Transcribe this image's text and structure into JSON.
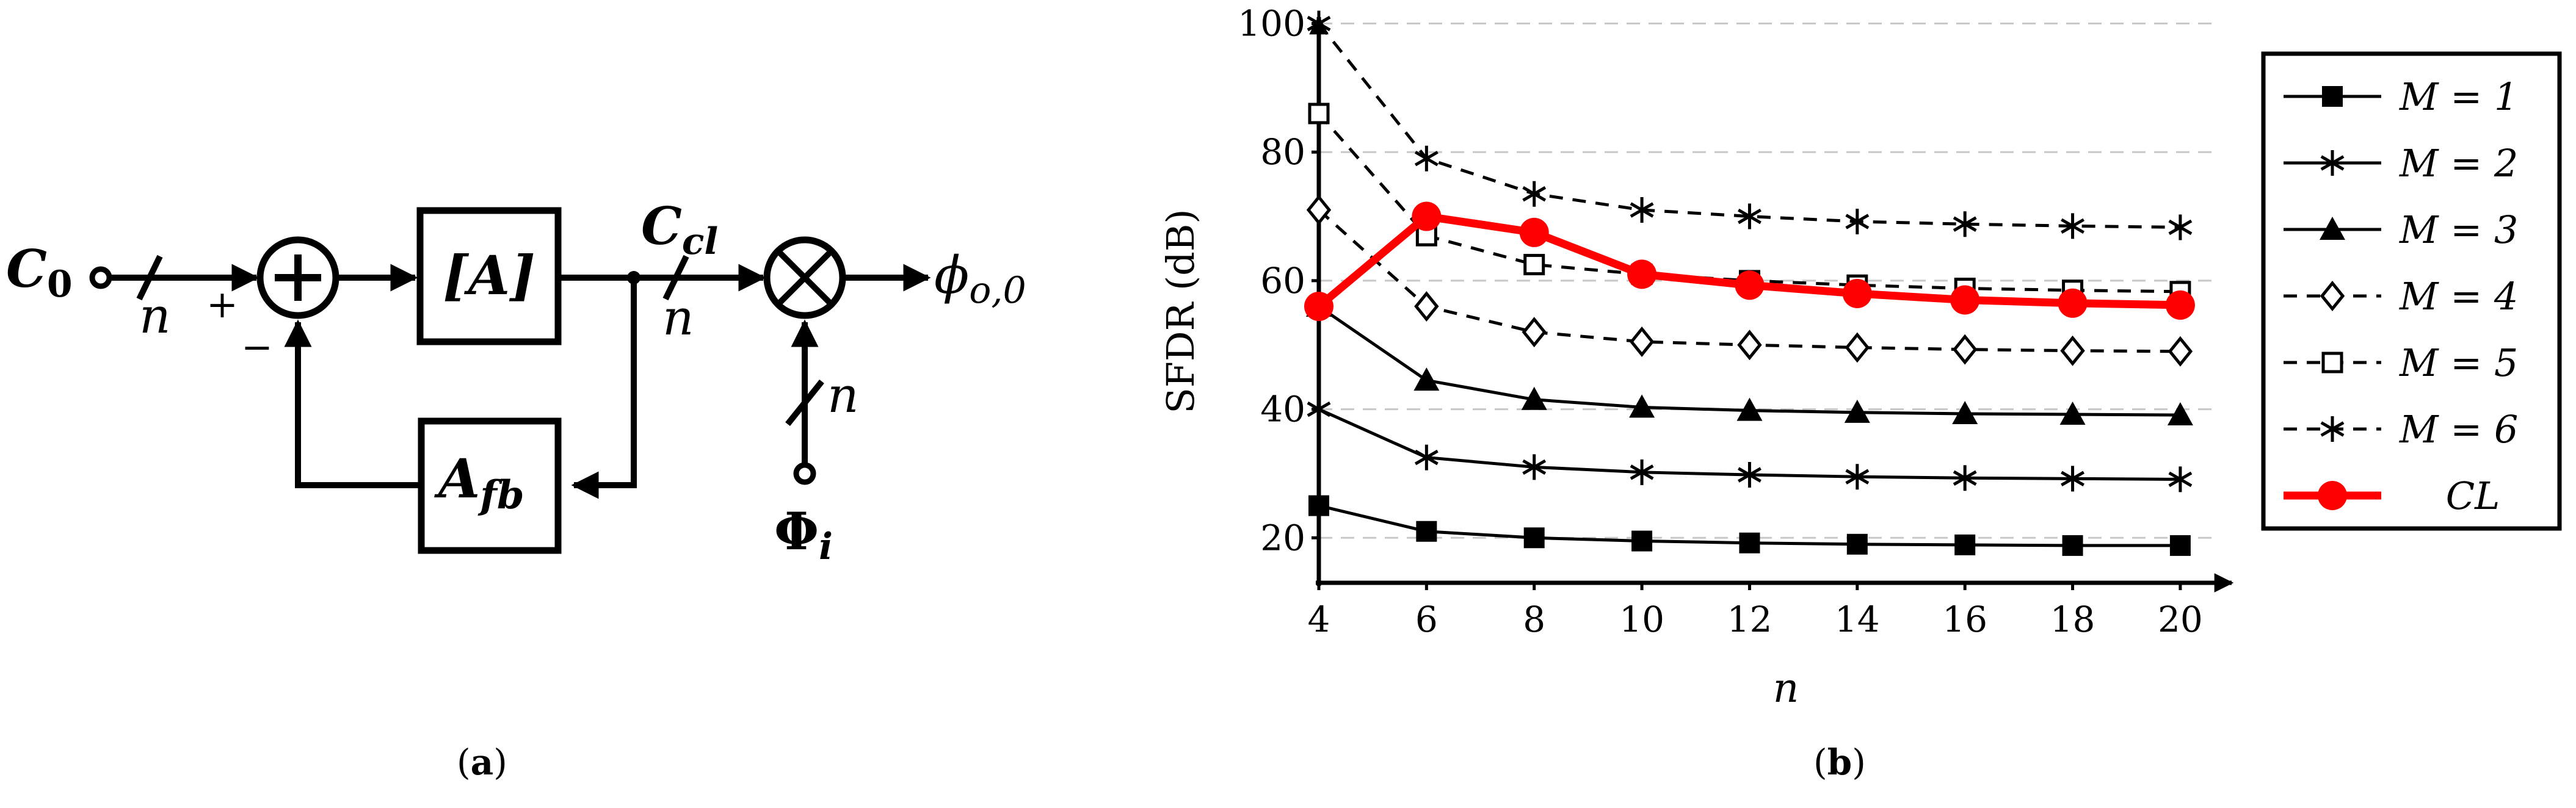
{
  "panel_a": {
    "caption_open": "(",
    "caption_letter": "a",
    "caption_close": ")",
    "input_label": "C",
    "input_sub": "0",
    "bus_width": "n",
    "plus_sign": "+",
    "minus_sign": "−",
    "sum_symbol": "⊕",
    "block_a": "[A]",
    "block_fb": "A",
    "block_fb_sub": "fb",
    "mid_label": "C",
    "mid_sub": "cl",
    "mixer_symbol": "⊗",
    "output_label": "ϕ",
    "output_sub": "o,0",
    "phase_label": "Φ",
    "phase_sub": "i"
  },
  "panel_b": {
    "caption_open": "(",
    "caption_letter": "b",
    "caption_close": ")"
  },
  "chart_data": {
    "type": "line",
    "title": "",
    "xlabel": "n",
    "ylabel": "SFDR (dB)",
    "x": [
      4,
      6,
      8,
      10,
      12,
      14,
      16,
      18,
      20
    ],
    "xticks": [
      "4",
      "6",
      "8",
      "10",
      "12",
      "14",
      "16",
      "18",
      "20"
    ],
    "yticks": [
      "20",
      "40",
      "60",
      "80",
      "100"
    ],
    "xlim": [
      4,
      20.5
    ],
    "ylim": [
      13,
      101
    ],
    "grid": "horizontal dashed",
    "legend_position": "right",
    "series": [
      {
        "name": "M = 1",
        "values": [
          25,
          21,
          20,
          19.5,
          19.2,
          19,
          18.9,
          18.8,
          18.8
        ],
        "marker": "square-filled",
        "dash": "solid",
        "color": "#000000"
      },
      {
        "name": "M = 2",
        "values": [
          40,
          32.5,
          31,
          30.2,
          29.8,
          29.5,
          29.3,
          29.2,
          29.1
        ],
        "marker": "star",
        "dash": "solid",
        "color": "#000000"
      },
      {
        "name": "M = 3",
        "values": [
          56,
          44.5,
          41.5,
          40.3,
          39.8,
          39.5,
          39.3,
          39.2,
          39.1
        ],
        "marker": "triangle-filled",
        "dash": "solid",
        "color": "#000000"
      },
      {
        "name": "M = 4",
        "values": [
          71,
          56,
          52,
          50.5,
          50,
          49.6,
          49.3,
          49.1,
          49
        ],
        "marker": "diamond-open",
        "dash": "dashed",
        "color": "#000000"
      },
      {
        "name": "M = 5",
        "values": [
          86,
          67,
          62.5,
          61,
          60,
          59.3,
          58.8,
          58.5,
          58.3
        ],
        "marker": "square-open",
        "dash": "dashed",
        "color": "#000000"
      },
      {
        "name": "M = 6",
        "values": [
          100,
          79,
          73.5,
          71,
          70,
          69.2,
          68.8,
          68.5,
          68.3
        ],
        "marker": "star",
        "dash": "dashed",
        "color": "#000000"
      },
      {
        "name": "CL",
        "values": [
          56,
          70,
          67.5,
          61,
          59.3,
          58,
          57,
          56.5,
          56.2
        ],
        "marker": "circle-filled",
        "dash": "solid",
        "color": "#ff0000"
      }
    ]
  }
}
